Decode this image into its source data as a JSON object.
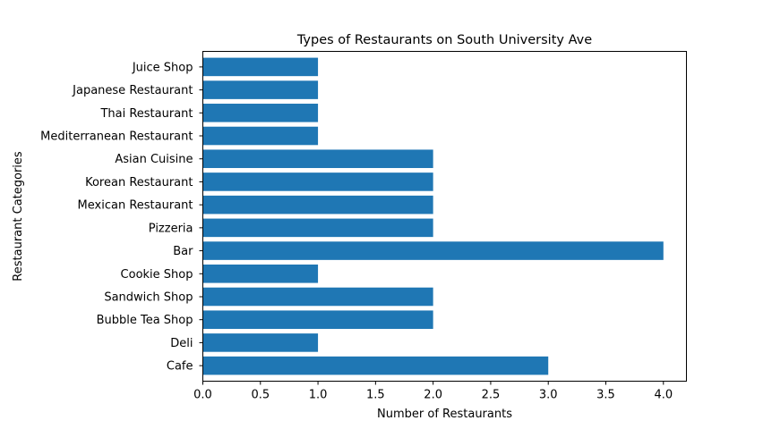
{
  "chart_data": {
    "type": "bar",
    "orientation": "horizontal",
    "title": "Types of Restaurants on South University Ave",
    "xlabel": "Number of Restaurants",
    "ylabel": "Restaurant Categories",
    "categories": [
      "Cafe",
      "Deli",
      "Bubble Tea Shop",
      "Sandwich Shop",
      "Cookie Shop",
      "Bar",
      "Pizzeria",
      "Mexican Restaurant",
      "Korean Restaurant",
      "Asian Cuisine ",
      "Mediterranean Restaurant",
      "Thai Restaurant",
      "Japanese Restaurant",
      "Juice Shop"
    ],
    "values": [
      3,
      1,
      2,
      2,
      1,
      4,
      2,
      2,
      2,
      2,
      1,
      1,
      1,
      1
    ],
    "xlim": [
      0,
      4.2
    ],
    "xticks": [
      "0.0",
      "0.5",
      "1.0",
      "1.5",
      "2.0",
      "2.5",
      "3.0",
      "3.5",
      "4.0"
    ],
    "grid": false,
    "bar_color": "#1f77b4"
  }
}
